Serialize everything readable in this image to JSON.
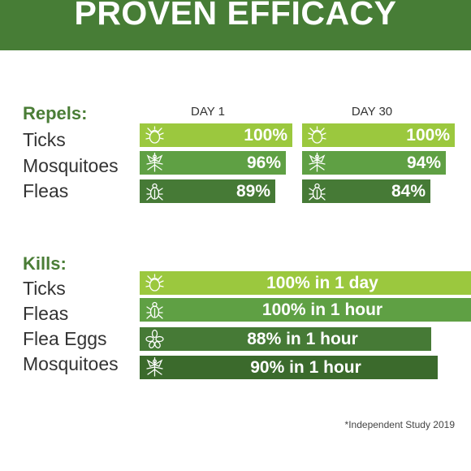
{
  "header": {
    "title": "PROVEN EFFICACY"
  },
  "colors": {
    "banner": "#477d36",
    "shade_1": "#9bc83e",
    "shade_2": "#5fa044",
    "shade_3": "#467a36",
    "shade_4": "#3b6a2c"
  },
  "chart_data": [
    {
      "type": "bar",
      "title": "Repels:",
      "categories": [
        "Ticks",
        "Mosquitoes",
        "Fleas"
      ],
      "icons": [
        "tick-icon",
        "mosquito-icon",
        "flea-icon"
      ],
      "series": [
        {
          "name": "DAY 1",
          "values": [
            100,
            96,
            89
          ],
          "labels": [
            "100%",
            "96%",
            "89%"
          ]
        },
        {
          "name": "DAY 30",
          "values": [
            100,
            94,
            84
          ],
          "labels": [
            "100%",
            "94%",
            "84%"
          ]
        }
      ],
      "ylim": [
        0,
        100
      ]
    },
    {
      "type": "bar",
      "title": "Kills:",
      "categories": [
        "Ticks",
        "Fleas",
        "Flea Eggs",
        "Mosquitoes"
      ],
      "icons": [
        "tick-icon",
        "flea-icon",
        "flea-eggs-icon",
        "mosquito-icon"
      ],
      "values": [
        100,
        100,
        88,
        90
      ],
      "labels": [
        "100% in 1 day",
        "100% in 1 hour",
        "88% in 1 hour",
        "90% in 1 hour"
      ],
      "ylim": [
        0,
        100
      ]
    }
  ],
  "footnote": "*Independent Study 2019"
}
